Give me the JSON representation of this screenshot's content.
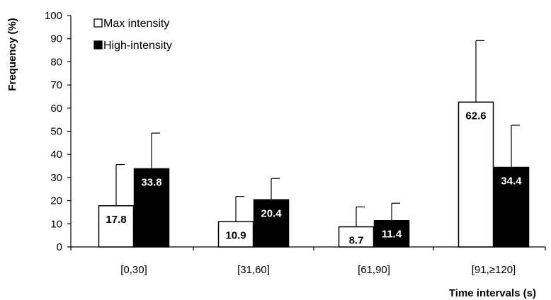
{
  "chart_data": {
    "type": "bar",
    "xlabel": "Time intervals (s)",
    "ylabel": "Frequency (%)",
    "ylim": [
      0,
      100
    ],
    "yticks": [
      0,
      10,
      20,
      30,
      40,
      50,
      60,
      70,
      80,
      90,
      100
    ],
    "categories": [
      "[0,30]",
      "[31,60]",
      "[61,90]",
      "[91,≥120]"
    ],
    "series": [
      {
        "name": "Max intensity",
        "fill": "#ffffff",
        "label_color": "#000000",
        "values": [
          17.8,
          10.9,
          8.7,
          62.6
        ],
        "value_labels": [
          "17.8",
          "10.9",
          "8.7",
          "62.6"
        ],
        "error_upper": [
          35.6,
          21.8,
          17.3,
          89.2
        ]
      },
      {
        "name": "High-intensity",
        "fill": "#000000",
        "label_color": "#ffffff",
        "values": [
          33.8,
          20.4,
          11.4,
          34.4
        ],
        "value_labels": [
          "33.8",
          "20.4",
          "11.4",
          "34.4"
        ],
        "error_upper": [
          49.2,
          29.6,
          18.9,
          52.6
        ]
      }
    ],
    "legend_position": "top-left",
    "grid": false
  }
}
